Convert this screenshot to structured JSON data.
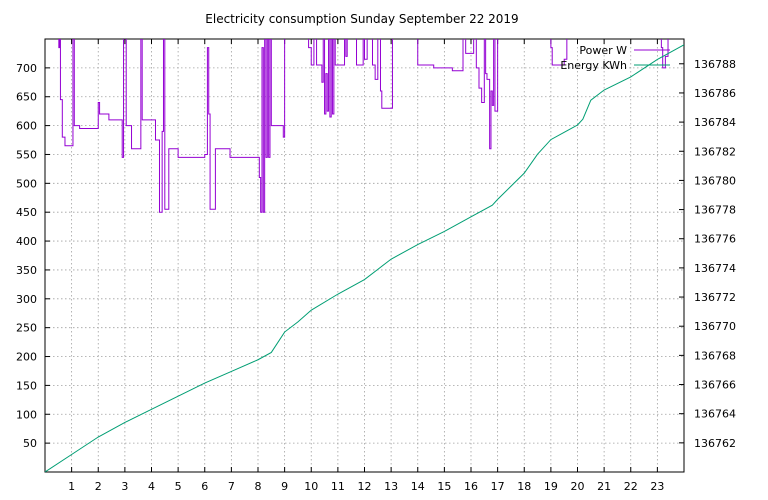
{
  "chart_data": {
    "type": "line",
    "title": "Electricity consumption Sunday September 22 2019",
    "xlabel": "",
    "ylabel": "",
    "y2label": "",
    "xlim": [
      0,
      24
    ],
    "ylim": [
      0,
      750
    ],
    "y2lim": [
      136760,
      136789.7
    ],
    "x_ticks": [
      1,
      2,
      3,
      4,
      5,
      6,
      7,
      8,
      9,
      10,
      11,
      12,
      13,
      14,
      15,
      16,
      17,
      18,
      19,
      20,
      21,
      22,
      23
    ],
    "y_ticks": [
      50,
      100,
      150,
      200,
      250,
      300,
      350,
      400,
      450,
      500,
      550,
      600,
      650,
      700
    ],
    "y2_ticks": [
      136762,
      136764,
      136766,
      136768,
      136770,
      136772,
      136774,
      136776,
      136778,
      136780,
      136782,
      136784,
      136786,
      136788
    ],
    "grid": true,
    "legend_position": "top-right",
    "series": [
      {
        "name": "Power W",
        "axis": "left",
        "color": "#9400d3",
        "style": "step",
        "points": [
          [
            0,
            760
          ],
          [
            0.5,
            760
          ],
          [
            0.52,
            735
          ],
          [
            0.55,
            760
          ],
          [
            0.58,
            645
          ],
          [
            0.65,
            580
          ],
          [
            0.75,
            565
          ],
          [
            0.95,
            565
          ],
          [
            1.05,
            760
          ],
          [
            1.1,
            600
          ],
          [
            1.2,
            600
          ],
          [
            1.3,
            595
          ],
          [
            1.95,
            595
          ],
          [
            2.0,
            640
          ],
          [
            2.05,
            620
          ],
          [
            2.35,
            620
          ],
          [
            2.4,
            610
          ],
          [
            2.85,
            610
          ],
          [
            2.9,
            545
          ],
          [
            2.95,
            760
          ],
          [
            3.05,
            600
          ],
          [
            3.2,
            600
          ],
          [
            3.25,
            560
          ],
          [
            3.55,
            560
          ],
          [
            3.6,
            760
          ],
          [
            3.65,
            610
          ],
          [
            4.1,
            610
          ],
          [
            4.15,
            575
          ],
          [
            4.25,
            575
          ],
          [
            4.3,
            450
          ],
          [
            4.4,
            590
          ],
          [
            4.45,
            760
          ],
          [
            4.5,
            455
          ],
          [
            4.6,
            455
          ],
          [
            4.65,
            560
          ],
          [
            4.95,
            560
          ],
          [
            5.0,
            545
          ],
          [
            5.95,
            545
          ],
          [
            6.0,
            550
          ],
          [
            6.1,
            735
          ],
          [
            6.15,
            620
          ],
          [
            6.2,
            455
          ],
          [
            6.35,
            455
          ],
          [
            6.4,
            560
          ],
          [
            6.9,
            560
          ],
          [
            6.95,
            545
          ],
          [
            8.0,
            545
          ],
          [
            8.05,
            510
          ],
          [
            8.1,
            450
          ],
          [
            8.15,
            735
          ],
          [
            8.2,
            450
          ],
          [
            8.25,
            760
          ],
          [
            8.3,
            545
          ],
          [
            8.35,
            760
          ],
          [
            8.4,
            545
          ],
          [
            8.45,
            760
          ],
          [
            8.5,
            600
          ],
          [
            8.9,
            600
          ],
          [
            8.95,
            580
          ],
          [
            9.0,
            760
          ],
          [
            9.8,
            760
          ],
          [
            9.9,
            735
          ],
          [
            10.0,
            705
          ],
          [
            10.1,
            760
          ],
          [
            10.2,
            705
          ],
          [
            10.35,
            705
          ],
          [
            10.4,
            675
          ],
          [
            10.45,
            760
          ],
          [
            10.5,
            620
          ],
          [
            10.55,
            690
          ],
          [
            10.6,
            625
          ],
          [
            10.65,
            760
          ],
          [
            10.7,
            615
          ],
          [
            10.75,
            760
          ],
          [
            10.8,
            620
          ],
          [
            10.85,
            760
          ],
          [
            10.9,
            705
          ],
          [
            11.2,
            705
          ],
          [
            11.25,
            760
          ],
          [
            11.3,
            720
          ],
          [
            11.35,
            760
          ],
          [
            11.6,
            760
          ],
          [
            11.7,
            705
          ],
          [
            11.9,
            705
          ],
          [
            11.95,
            760
          ],
          [
            12.0,
            715
          ],
          [
            12.1,
            760
          ],
          [
            12.3,
            705
          ],
          [
            12.4,
            680
          ],
          [
            12.5,
            760
          ],
          [
            12.6,
            660
          ],
          [
            12.65,
            630
          ],
          [
            13.0,
            630
          ],
          [
            13.05,
            760
          ],
          [
            13.9,
            760
          ],
          [
            14.0,
            705
          ],
          [
            14.5,
            705
          ],
          [
            14.6,
            700
          ],
          [
            15.25,
            700
          ],
          [
            15.3,
            695
          ],
          [
            15.6,
            695
          ],
          [
            15.7,
            760
          ],
          [
            15.8,
            725
          ],
          [
            16.0,
            725
          ],
          [
            16.1,
            760
          ],
          [
            16.2,
            700
          ],
          [
            16.3,
            665
          ],
          [
            16.4,
            640
          ],
          [
            16.5,
            760
          ],
          [
            16.55,
            690
          ],
          [
            16.6,
            680
          ],
          [
            16.7,
            560
          ],
          [
            16.75,
            660
          ],
          [
            16.8,
            635
          ],
          [
            16.85,
            760
          ],
          [
            16.9,
            625
          ],
          [
            17.0,
            760
          ],
          [
            18.9,
            760
          ],
          [
            19.0,
            735
          ],
          [
            19.05,
            705
          ],
          [
            19.4,
            705
          ],
          [
            19.5,
            715
          ],
          [
            19.6,
            760
          ],
          [
            23.1,
            760
          ],
          [
            23.15,
            735
          ],
          [
            23.2,
            700
          ],
          [
            23.3,
            720
          ],
          [
            23.4,
            760
          ],
          [
            24,
            760
          ]
        ]
      },
      {
        "name": "Energy KWh",
        "axis": "right",
        "color": "#009e73",
        "style": "line",
        "points": [
          [
            0,
            136760.0
          ],
          [
            1,
            136761.2
          ],
          [
            2,
            136762.4
          ],
          [
            3,
            136763.4
          ],
          [
            4,
            136764.3
          ],
          [
            5,
            136765.2
          ],
          [
            6,
            136766.1
          ],
          [
            7,
            136766.9
          ],
          [
            8,
            136767.7
          ],
          [
            8.5,
            136768.2
          ],
          [
            9,
            136769.6
          ],
          [
            9.5,
            136770.3
          ],
          [
            10,
            136771.1
          ],
          [
            11,
            136772.2
          ],
          [
            12,
            136773.2
          ],
          [
            12.5,
            136773.9
          ],
          [
            13,
            136774.6
          ],
          [
            14,
            136775.6
          ],
          [
            15,
            136776.5
          ],
          [
            16,
            136777.5
          ],
          [
            16.8,
            136778.3
          ],
          [
            17,
            136778.7
          ],
          [
            17.5,
            136779.6
          ],
          [
            18,
            136780.5
          ],
          [
            18.5,
            136781.8
          ],
          [
            19,
            136782.8
          ],
          [
            19.5,
            136783.3
          ],
          [
            20,
            136783.8
          ],
          [
            20.2,
            136784.2
          ],
          [
            20.5,
            136785.5
          ],
          [
            21,
            136786.2
          ],
          [
            22,
            136787.1
          ],
          [
            23,
            136788.3
          ],
          [
            24,
            136789.3
          ]
        ]
      }
    ]
  }
}
